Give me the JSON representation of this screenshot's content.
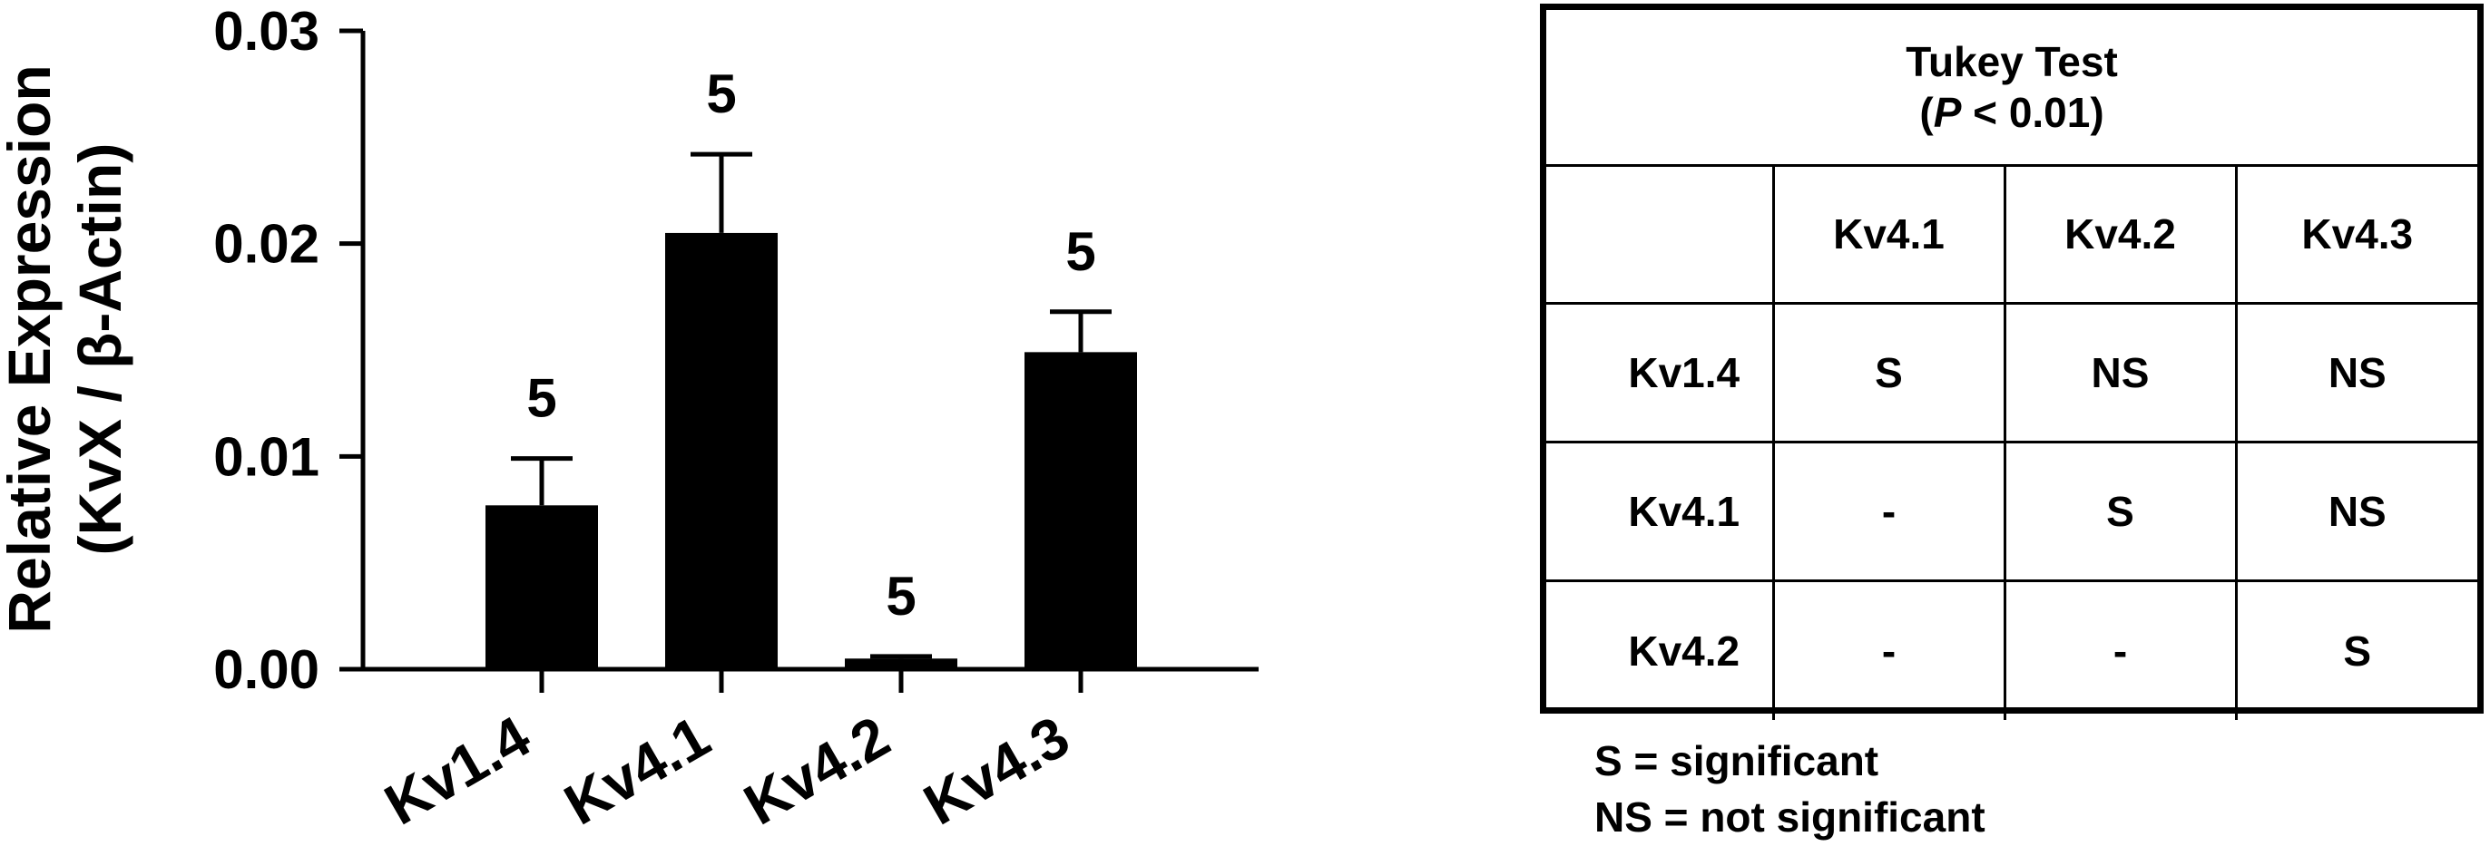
{
  "chart_data": {
    "type": "bar",
    "title": "",
    "ylabel_line1": "Relative Expression",
    "ylabel_line2": "(KvX / β-Actin)",
    "xlabel": "",
    "categories": [
      "Kv1.4",
      "Kv4.1",
      "Kv4.2",
      "Kv4.3"
    ],
    "values": [
      0.0077,
      0.0205,
      0.0005,
      0.0149
    ],
    "errors": [
      0.0022,
      0.0037,
      0.0001,
      0.0019
    ],
    "n_labels": [
      "5",
      "5",
      "5",
      "5"
    ],
    "ylim": [
      0,
      0.03
    ],
    "yticks": [
      0,
      0.01,
      0.02,
      0.03
    ],
    "ytick_labels": [
      "0.00",
      "0.01",
      "0.02",
      "0.03"
    ],
    "bar_color": "#000000"
  },
  "tukey": {
    "title": "Tukey Test",
    "p_open": "(",
    "p_symbol": "P",
    "p_rest": " < 0.01)",
    "columns": [
      "Kv4.1",
      "Kv4.2",
      "Kv4.3"
    ],
    "rows": [
      {
        "label": "Kv1.4",
        "cells": [
          "S",
          "NS",
          "NS"
        ]
      },
      {
        "label": "Kv4.1",
        "cells": [
          "-",
          "S",
          "NS"
        ]
      },
      {
        "label": "Kv4.2",
        "cells": [
          "-",
          "-",
          "S"
        ]
      }
    ]
  },
  "legend": {
    "line1": "S = significant",
    "line2": "NS = not significant"
  }
}
